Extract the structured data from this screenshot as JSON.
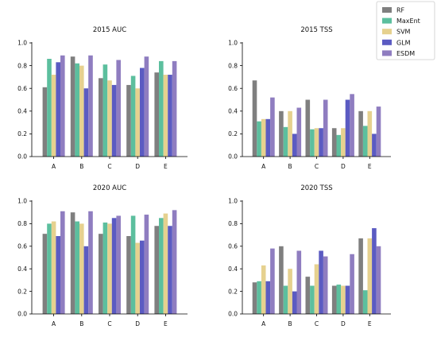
{
  "legend": {
    "placement": "top-right",
    "entries": [
      {
        "name": "RF",
        "color": "#7f7f7f"
      },
      {
        "name": "MaxEnt",
        "color": "#5cbf9e"
      },
      {
        "name": "SVM",
        "color": "#e6d18f"
      },
      {
        "name": "GLM",
        "color": "#5b5bc2"
      },
      {
        "name": "ESDM",
        "color": "#8f7dc0"
      }
    ]
  },
  "chart_data": [
    {
      "type": "bar",
      "title": "2015 AUC",
      "categories": [
        "A",
        "B",
        "C",
        "D",
        "E"
      ],
      "ylim": [
        0,
        1.0
      ],
      "yticks": [
        "0.0",
        "0.2",
        "0.4",
        "0.6",
        "0.8",
        "1.0"
      ],
      "grid": false,
      "series": [
        {
          "name": "RF",
          "values": [
            0.61,
            0.88,
            0.69,
            0.63,
            0.74
          ]
        },
        {
          "name": "MaxEnt",
          "values": [
            0.86,
            0.82,
            0.81,
            0.71,
            0.84
          ]
        },
        {
          "name": "SVM",
          "values": [
            0.72,
            0.8,
            0.67,
            0.6,
            0.72
          ]
        },
        {
          "name": "GLM",
          "values": [
            0.83,
            0.6,
            0.63,
            0.78,
            0.72
          ]
        },
        {
          "name": "ESDM",
          "values": [
            0.89,
            0.89,
            0.85,
            0.88,
            0.84
          ]
        }
      ]
    },
    {
      "type": "bar",
      "title": "2015 TSS",
      "categories": [
        "A",
        "B",
        "C",
        "D",
        "E"
      ],
      "ylim": [
        0,
        1.0
      ],
      "yticks": [
        "0.0",
        "0.2",
        "0.4",
        "0.6",
        "0.8",
        "1.0"
      ],
      "grid": false,
      "series": [
        {
          "name": "RF",
          "values": [
            0.67,
            0.4,
            0.5,
            0.25,
            0.4
          ]
        },
        {
          "name": "MaxEnt",
          "values": [
            0.31,
            0.26,
            0.24,
            0.19,
            0.27
          ]
        },
        {
          "name": "SVM",
          "values": [
            0.33,
            0.4,
            0.25,
            0.25,
            0.4
          ]
        },
        {
          "name": "GLM",
          "values": [
            0.33,
            0.2,
            0.25,
            0.5,
            0.2
          ]
        },
        {
          "name": "ESDM",
          "values": [
            0.52,
            0.43,
            0.5,
            0.55,
            0.44
          ]
        }
      ]
    },
    {
      "type": "bar",
      "title": "2020 AUC",
      "categories": [
        "A",
        "B",
        "C",
        "D",
        "E"
      ],
      "ylim": [
        0,
        1.0
      ],
      "yticks": [
        "0.0",
        "0.2",
        "0.4",
        "0.6",
        "0.8",
        "1.0"
      ],
      "grid": false,
      "series": [
        {
          "name": "RF",
          "values": [
            0.71,
            0.9,
            0.71,
            0.69,
            0.78
          ]
        },
        {
          "name": "MaxEnt",
          "values": [
            0.8,
            0.82,
            0.81,
            0.87,
            0.85
          ]
        },
        {
          "name": "SVM",
          "values": [
            0.82,
            0.8,
            0.8,
            0.63,
            0.89
          ]
        },
        {
          "name": "GLM",
          "values": [
            0.69,
            0.6,
            0.85,
            0.65,
            0.78
          ]
        },
        {
          "name": "ESDM",
          "values": [
            0.91,
            0.91,
            0.87,
            0.88,
            0.92
          ]
        }
      ]
    },
    {
      "type": "bar",
      "title": "2020 TSS",
      "categories": [
        "A",
        "B",
        "C",
        "D",
        "E"
      ],
      "ylim": [
        0,
        1.0
      ],
      "yticks": [
        "0.0",
        "0.2",
        "0.4",
        "0.6",
        "0.8",
        "1.0"
      ],
      "grid": false,
      "series": [
        {
          "name": "RF",
          "values": [
            0.28,
            0.6,
            0.33,
            0.25,
            0.67
          ]
        },
        {
          "name": "MaxEnt",
          "values": [
            0.29,
            0.25,
            0.25,
            0.26,
            0.21
          ]
        },
        {
          "name": "SVM",
          "values": [
            0.43,
            0.4,
            0.44,
            0.25,
            0.67
          ]
        },
        {
          "name": "GLM",
          "values": [
            0.29,
            0.2,
            0.56,
            0.25,
            0.76
          ]
        },
        {
          "name": "ESDM",
          "values": [
            0.58,
            0.56,
            0.51,
            0.53,
            0.6
          ]
        }
      ]
    }
  ]
}
